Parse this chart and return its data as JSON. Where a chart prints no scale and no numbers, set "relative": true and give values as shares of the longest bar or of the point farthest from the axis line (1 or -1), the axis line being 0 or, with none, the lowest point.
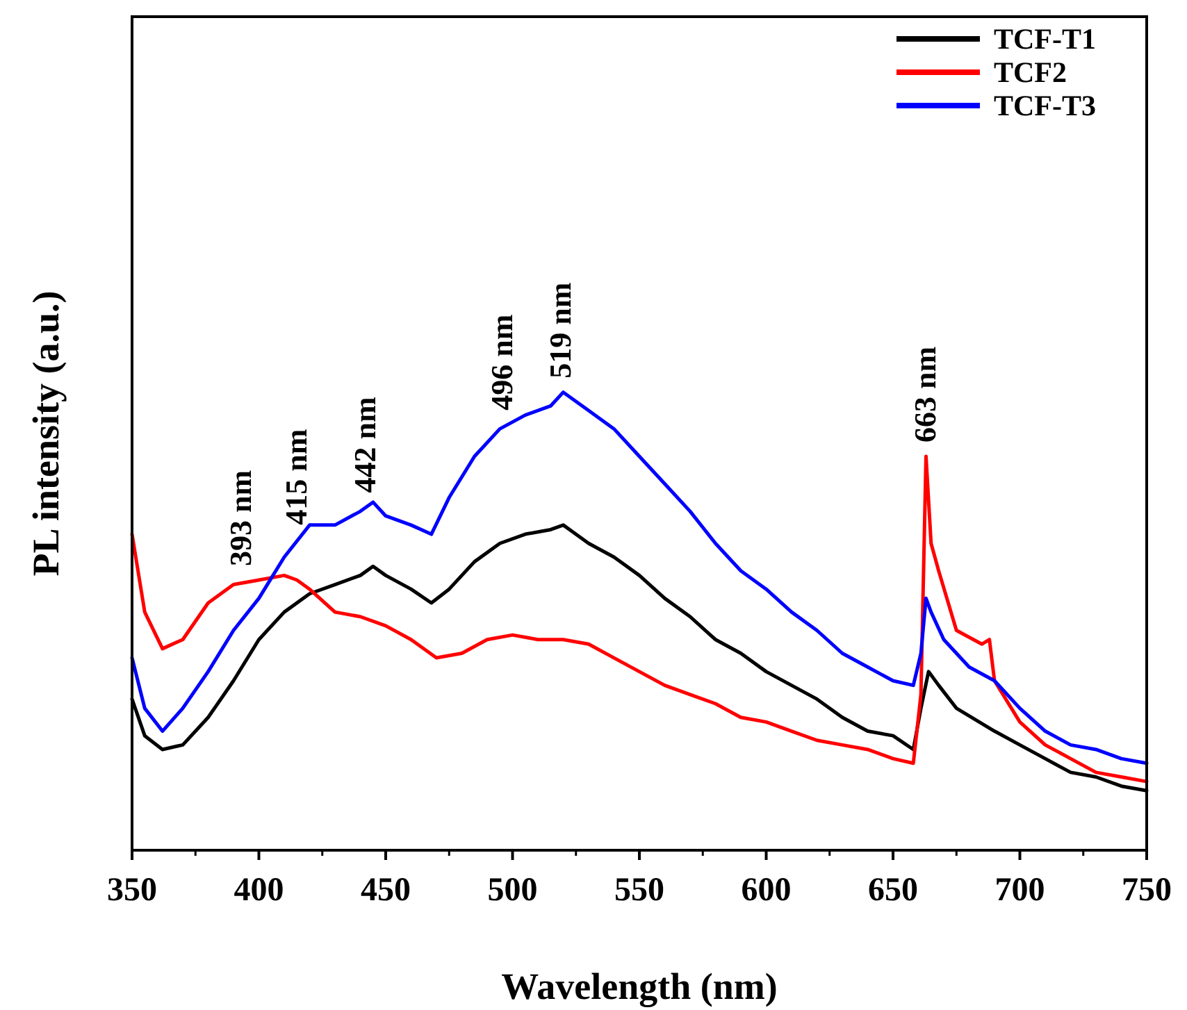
{
  "chart_data": {
    "type": "line",
    "xlabel": "Wavelength (nm)",
    "ylabel": "PL intensity (a.u.)",
    "relative": true,
    "xlim": [
      350,
      750
    ],
    "xticks": [
      350,
      400,
      450,
      500,
      550,
      600,
      650,
      700,
      750
    ],
    "legend": "top right",
    "grid": false,
    "line_style": "solid",
    "series": [
      {
        "name": "TCF-T1",
        "color": "#000000",
        "x": [
          350,
          355,
          362,
          370,
          380,
          390,
          400,
          410,
          420,
          430,
          440,
          445,
          450,
          460,
          468,
          475,
          485,
          495,
          505,
          515,
          520,
          530,
          540,
          550,
          560,
          570,
          580,
          590,
          600,
          610,
          620,
          630,
          640,
          650,
          658,
          661,
          664,
          668,
          675,
          690,
          700,
          710,
          720,
          730,
          740,
          750
        ],
        "values": [
          0.33,
          0.25,
          0.22,
          0.23,
          0.29,
          0.37,
          0.46,
          0.52,
          0.56,
          0.58,
          0.6,
          0.62,
          0.6,
          0.57,
          0.54,
          0.57,
          0.63,
          0.67,
          0.69,
          0.7,
          0.71,
          0.67,
          0.64,
          0.6,
          0.55,
          0.51,
          0.46,
          0.43,
          0.39,
          0.36,
          0.33,
          0.29,
          0.26,
          0.25,
          0.22,
          0.31,
          0.39,
          0.36,
          0.31,
          0.26,
          0.23,
          0.2,
          0.17,
          0.16,
          0.14,
          0.13
        ]
      },
      {
        "name": "TCF2",
        "color": "#ff0000",
        "x": [
          350,
          355,
          362,
          370,
          380,
          390,
          400,
          410,
          415,
          420,
          430,
          440,
          450,
          460,
          470,
          480,
          490,
          500,
          510,
          520,
          530,
          540,
          550,
          560,
          570,
          580,
          590,
          600,
          610,
          620,
          630,
          640,
          650,
          658,
          661,
          663,
          665,
          668,
          675,
          685,
          688,
          690,
          700,
          710,
          720,
          730,
          740,
          750
        ],
        "values": [
          0.69,
          0.52,
          0.44,
          0.46,
          0.54,
          0.58,
          0.59,
          0.6,
          0.59,
          0.57,
          0.52,
          0.51,
          0.49,
          0.46,
          0.42,
          0.43,
          0.46,
          0.47,
          0.46,
          0.46,
          0.45,
          0.42,
          0.39,
          0.36,
          0.34,
          0.32,
          0.29,
          0.28,
          0.26,
          0.24,
          0.23,
          0.22,
          0.2,
          0.19,
          0.34,
          0.86,
          0.67,
          0.61,
          0.48,
          0.45,
          0.46,
          0.37,
          0.28,
          0.23,
          0.2,
          0.17,
          0.16,
          0.15
        ]
      },
      {
        "name": "TCF-T3",
        "color": "#0000ff",
        "x": [
          350,
          355,
          362,
          370,
          380,
          390,
          400,
          410,
          420,
          430,
          440,
          445,
          450,
          460,
          468,
          475,
          485,
          495,
          505,
          515,
          520,
          530,
          540,
          550,
          560,
          570,
          580,
          590,
          600,
          610,
          620,
          630,
          640,
          650,
          658,
          661,
          663,
          665,
          670,
          680,
          690,
          700,
          710,
          720,
          730,
          740,
          750
        ],
        "values": [
          0.42,
          0.31,
          0.26,
          0.31,
          0.39,
          0.48,
          0.55,
          0.64,
          0.71,
          0.71,
          0.74,
          0.76,
          0.73,
          0.71,
          0.69,
          0.77,
          0.86,
          0.92,
          0.95,
          0.97,
          1.0,
          0.96,
          0.92,
          0.86,
          0.8,
          0.74,
          0.67,
          0.61,
          0.57,
          0.52,
          0.48,
          0.43,
          0.4,
          0.37,
          0.36,
          0.43,
          0.55,
          0.52,
          0.46,
          0.4,
          0.37,
          0.31,
          0.26,
          0.23,
          0.22,
          0.2,
          0.19
        ]
      }
    ],
    "annotations": [
      {
        "text": "393 nm",
        "x": 393,
        "y": 0.59
      },
      {
        "text": "415 nm",
        "x": 415,
        "y": 0.68
      },
      {
        "text": "442 nm",
        "x": 442,
        "y": 0.75
      },
      {
        "text": "496 nm",
        "x": 496,
        "y": 0.93
      },
      {
        "text": "519 nm",
        "x": 519,
        "y": 1.0
      },
      {
        "text": "663 nm",
        "x": 663,
        "y": 0.86
      }
    ]
  }
}
